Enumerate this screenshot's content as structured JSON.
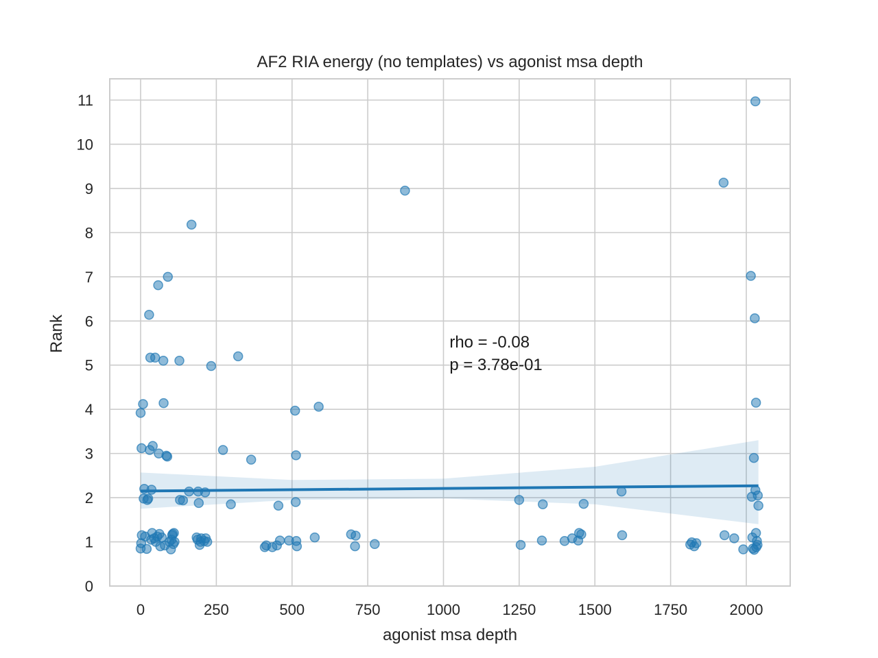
{
  "chart_data": {
    "type": "scatter",
    "title": "AF2 RIA energy (no templates) vs agonist msa depth",
    "xlabel": "agonist msa depth",
    "ylabel": "Rank",
    "xlim": [
      -100,
      2150
    ],
    "ylim": [
      0,
      11.5
    ],
    "xticks": [
      0,
      250,
      500,
      750,
      1000,
      1250,
      1500,
      1750,
      2000
    ],
    "yticks": [
      0,
      1,
      2,
      3,
      4,
      5,
      6,
      7,
      8,
      9,
      10,
      11
    ],
    "grid": true,
    "point_color": "#1f77b4",
    "annotation": [
      "rho = -0.08",
      "p = 3.78e-01"
    ],
    "annotation_pos": {
      "x": 1020,
      "y": 5.4
    },
    "regression": {
      "x": [
        0,
        2040
      ],
      "y": [
        2.15,
        2.27
      ],
      "ci_lower": [
        1.75,
        1.4
      ],
      "ci_upper": [
        2.57,
        3.3
      ],
      "ci_x": [
        0,
        500,
        1000,
        1500,
        2040
      ],
      "ci_lower_pts": [
        1.75,
        1.95,
        1.98,
        1.85,
        1.4
      ],
      "ci_upper_pts": [
        2.57,
        2.4,
        2.43,
        2.7,
        3.3
      ]
    },
    "points": [
      {
        "x": 0,
        "y": 3.92
      },
      {
        "x": 3,
        "y": 3.12
      },
      {
        "x": 8,
        "y": 4.12
      },
      {
        "x": 0,
        "y": 0.85
      },
      {
        "x": 2,
        "y": 0.97
      },
      {
        "x": 4,
        "y": 1.15
      },
      {
        "x": 10,
        "y": 1.98
      },
      {
        "x": 12,
        "y": 2.2
      },
      {
        "x": 15,
        "y": 1.12
      },
      {
        "x": 20,
        "y": 0.84
      },
      {
        "x": 22,
        "y": 1.95
      },
      {
        "x": 25,
        "y": 1.98
      },
      {
        "x": 28,
        "y": 6.14
      },
      {
        "x": 30,
        "y": 3.08
      },
      {
        "x": 32,
        "y": 5.17
      },
      {
        "x": 35,
        "y": 1.05
      },
      {
        "x": 36,
        "y": 2.18
      },
      {
        "x": 38,
        "y": 1.2
      },
      {
        "x": 40,
        "y": 3.17
      },
      {
        "x": 45,
        "y": 1.08
      },
      {
        "x": 48,
        "y": 5.17
      },
      {
        "x": 50,
        "y": 1.0
      },
      {
        "x": 55,
        "y": 1.12
      },
      {
        "x": 58,
        "y": 6.81
      },
      {
        "x": 60,
        "y": 3.0
      },
      {
        "x": 62,
        "y": 1.18
      },
      {
        "x": 65,
        "y": 0.9
      },
      {
        "x": 70,
        "y": 1.1
      },
      {
        "x": 75,
        "y": 5.1
      },
      {
        "x": 76,
        "y": 4.14
      },
      {
        "x": 80,
        "y": 0.92
      },
      {
        "x": 85,
        "y": 2.95
      },
      {
        "x": 88,
        "y": 2.93
      },
      {
        "x": 90,
        "y": 7.0
      },
      {
        "x": 95,
        "y": 1.0
      },
      {
        "x": 100,
        "y": 0.83
      },
      {
        "x": 102,
        "y": 1.05
      },
      {
        "x": 104,
        "y": 1.15
      },
      {
        "x": 106,
        "y": 1.18
      },
      {
        "x": 108,
        "y": 0.95
      },
      {
        "x": 110,
        "y": 1.2
      },
      {
        "x": 112,
        "y": 1.0
      },
      {
        "x": 128,
        "y": 5.1
      },
      {
        "x": 130,
        "y": 1.95
      },
      {
        "x": 140,
        "y": 1.94
      },
      {
        "x": 160,
        "y": 2.14
      },
      {
        "x": 168,
        "y": 8.18
      },
      {
        "x": 185,
        "y": 1.1
      },
      {
        "x": 188,
        "y": 1.05
      },
      {
        "x": 190,
        "y": 2.14
      },
      {
        "x": 192,
        "y": 1.88
      },
      {
        "x": 195,
        "y": 0.93
      },
      {
        "x": 198,
        "y": 1.0
      },
      {
        "x": 200,
        "y": 1.08
      },
      {
        "x": 210,
        "y": 1.02
      },
      {
        "x": 213,
        "y": 2.12
      },
      {
        "x": 215,
        "y": 1.08
      },
      {
        "x": 220,
        "y": 1.0
      },
      {
        "x": 233,
        "y": 4.98
      },
      {
        "x": 272,
        "y": 3.08
      },
      {
        "x": 298,
        "y": 1.85
      },
      {
        "x": 322,
        "y": 5.2
      },
      {
        "x": 365,
        "y": 2.86
      },
      {
        "x": 410,
        "y": 0.88
      },
      {
        "x": 415,
        "y": 0.92
      },
      {
        "x": 435,
        "y": 0.88
      },
      {
        "x": 450,
        "y": 0.92
      },
      {
        "x": 455,
        "y": 1.82
      },
      {
        "x": 460,
        "y": 1.03
      },
      {
        "x": 490,
        "y": 1.03
      },
      {
        "x": 510,
        "y": 3.97
      },
      {
        "x": 512,
        "y": 1.9
      },
      {
        "x": 513,
        "y": 2.96
      },
      {
        "x": 514,
        "y": 1.02
      },
      {
        "x": 516,
        "y": 0.9
      },
      {
        "x": 575,
        "y": 1.1
      },
      {
        "x": 588,
        "y": 4.06
      },
      {
        "x": 695,
        "y": 1.17
      },
      {
        "x": 708,
        "y": 0.9
      },
      {
        "x": 710,
        "y": 1.14
      },
      {
        "x": 773,
        "y": 0.95
      },
      {
        "x": 873,
        "y": 8.95
      },
      {
        "x": 1250,
        "y": 1.95
      },
      {
        "x": 1255,
        "y": 0.93
      },
      {
        "x": 1325,
        "y": 1.03
      },
      {
        "x": 1328,
        "y": 1.85
      },
      {
        "x": 1400,
        "y": 1.02
      },
      {
        "x": 1425,
        "y": 1.08
      },
      {
        "x": 1445,
        "y": 1.03
      },
      {
        "x": 1448,
        "y": 1.2
      },
      {
        "x": 1455,
        "y": 1.17
      },
      {
        "x": 1463,
        "y": 1.86
      },
      {
        "x": 1588,
        "y": 2.14
      },
      {
        "x": 1590,
        "y": 1.15
      },
      {
        "x": 1815,
        "y": 0.94
      },
      {
        "x": 1820,
        "y": 0.99
      },
      {
        "x": 1828,
        "y": 0.9
      },
      {
        "x": 1835,
        "y": 0.97
      },
      {
        "x": 1925,
        "y": 9.13
      },
      {
        "x": 1928,
        "y": 1.15
      },
      {
        "x": 1960,
        "y": 1.08
      },
      {
        "x": 1990,
        "y": 0.83
      },
      {
        "x": 2015,
        "y": 7.02
      },
      {
        "x": 2018,
        "y": 2.02
      },
      {
        "x": 2020,
        "y": 1.1
      },
      {
        "x": 2022,
        "y": 0.85
      },
      {
        "x": 2025,
        "y": 2.9
      },
      {
        "x": 2026,
        "y": 0.82
      },
      {
        "x": 2028,
        "y": 6.06
      },
      {
        "x": 2030,
        "y": 2.17
      },
      {
        "x": 2030,
        "y": 10.97
      },
      {
        "x": 2032,
        "y": 4.15
      },
      {
        "x": 2032,
        "y": 1.2
      },
      {
        "x": 2035,
        "y": 1.02
      },
      {
        "x": 2037,
        "y": 0.93
      },
      {
        "x": 2038,
        "y": 2.05
      },
      {
        "x": 2040,
        "y": 1.82
      },
      {
        "x": 2033,
        "y": 0.88
      }
    ]
  }
}
